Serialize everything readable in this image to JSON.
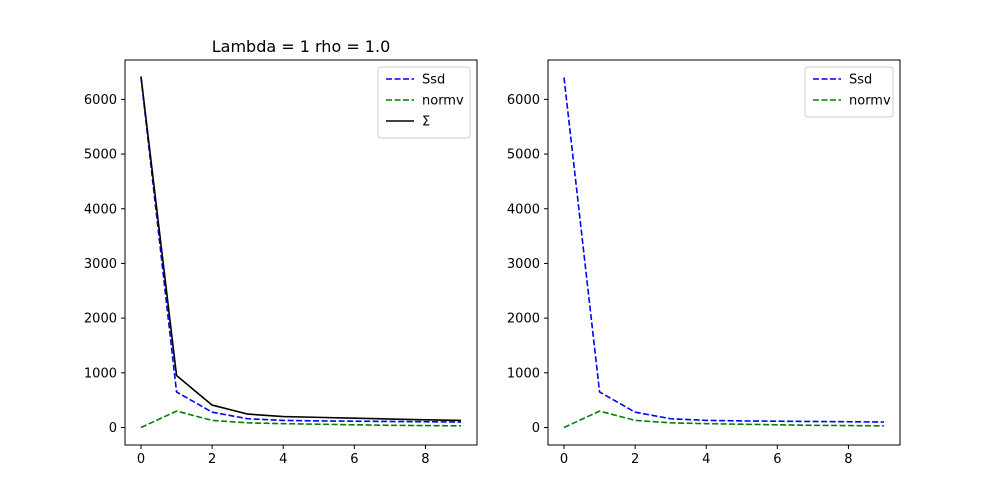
{
  "chart_data": [
    {
      "type": "line",
      "title": "Lambda = 1 rho = 1.0",
      "xlabel": "",
      "ylabel": "",
      "x": [
        0,
        1,
        2,
        3,
        4,
        5,
        6,
        7,
        8,
        9
      ],
      "xlim": [
        -0.45,
        9.45
      ],
      "ylim": [
        -320,
        6720
      ],
      "xticks": [
        0,
        2,
        4,
        6,
        8
      ],
      "yticks": [
        0,
        1000,
        2000,
        3000,
        4000,
        5000,
        6000
      ],
      "grid": false,
      "legend_position": "top-right",
      "series": [
        {
          "name": "Ssd",
          "color": "#0000ff",
          "style": "dashed",
          "values": [
            6400,
            650,
            280,
            160,
            130,
            120,
            115,
            110,
            105,
            100
          ]
        },
        {
          "name": "normv",
          "color": "#008000",
          "style": "dashed",
          "values": [
            0,
            300,
            130,
            85,
            70,
            60,
            50,
            40,
            35,
            30
          ]
        },
        {
          "name": "Σ",
          "color": "#000000",
          "style": "solid",
          "values": [
            6420,
            950,
            410,
            245,
            200,
            185,
            170,
            155,
            140,
            130
          ]
        }
      ]
    },
    {
      "type": "line",
      "title": "",
      "xlabel": "",
      "ylabel": "",
      "x": [
        0,
        1,
        2,
        3,
        4,
        5,
        6,
        7,
        8,
        9
      ],
      "xlim": [
        -0.45,
        9.45
      ],
      "ylim": [
        -320,
        6720
      ],
      "xticks": [
        0,
        2,
        4,
        6,
        8
      ],
      "yticks": [
        0,
        1000,
        2000,
        3000,
        4000,
        5000,
        6000
      ],
      "grid": false,
      "legend_position": "top-right",
      "series": [
        {
          "name": "Ssd",
          "color": "#0000ff",
          "style": "dashed",
          "values": [
            6400,
            650,
            280,
            160,
            130,
            120,
            115,
            110,
            105,
            100
          ]
        },
        {
          "name": "normv",
          "color": "#008000",
          "style": "dashed",
          "values": [
            0,
            300,
            130,
            85,
            70,
            60,
            50,
            40,
            35,
            30
          ]
        }
      ]
    }
  ]
}
